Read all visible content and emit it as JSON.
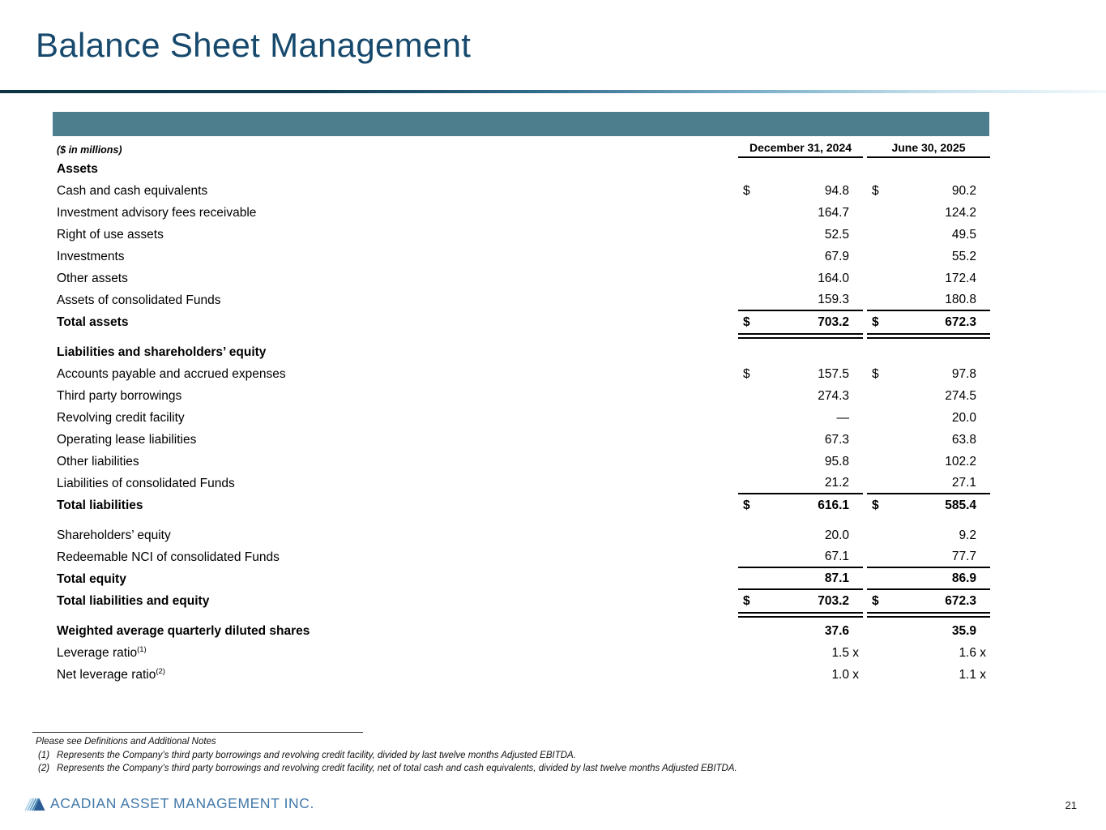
{
  "slide": {
    "title": "Balance Sheet Management",
    "page_number": "21"
  },
  "table": {
    "units_label": "($ in millions)",
    "columns": [
      "December 31, 2024",
      "June 30, 2025"
    ],
    "rows": [
      {
        "label": "Assets",
        "bold": true
      },
      {
        "label": "Cash and cash equivalents",
        "dollar": true,
        "v1": "94.8",
        "v2": "90.2"
      },
      {
        "label": "Investment advisory fees receivable",
        "v1": "164.7",
        "v2": "124.2"
      },
      {
        "label": "Right of use assets",
        "v1": "52.5",
        "v2": "49.5"
      },
      {
        "label": "Investments",
        "v1": "67.9",
        "v2": "55.2"
      },
      {
        "label": "Other assets",
        "v1": "164.0",
        "v2": "172.4"
      },
      {
        "label": "Assets of consolidated Funds",
        "v1": "159.3",
        "v2": "180.8",
        "rule": "single"
      },
      {
        "label": "Total assets",
        "bold": true,
        "dollar": true,
        "v1": "703.2",
        "v2": "672.3",
        "rule": "double"
      },
      {
        "label": "Liabilities and shareholders’ equity",
        "bold": true,
        "gap_before": true
      },
      {
        "label": "Accounts payable and accrued expenses",
        "dollar": true,
        "v1": "157.5",
        "v2": "97.8"
      },
      {
        "label": "Third party borrowings",
        "v1": "274.3",
        "v2": "274.5"
      },
      {
        "label": "Revolving credit facility",
        "v1": "—",
        "v2": "20.0"
      },
      {
        "label": "Operating lease liabilities",
        "v1": "67.3",
        "v2": "63.8"
      },
      {
        "label": "Other liabilities",
        "v1": "95.8",
        "v2": "102.2"
      },
      {
        "label": "Liabilities of consolidated Funds",
        "v1": "21.2",
        "v2": "27.1",
        "rule": "single"
      },
      {
        "label": "Total liabilities",
        "bold": true,
        "dollar": true,
        "v1": "616.1",
        "v2": "585.4"
      },
      {
        "label": "Shareholders’ equity",
        "v1": "20.0",
        "v2": "9.2",
        "gap_before": true
      },
      {
        "label": "Redeemable NCI of consolidated Funds",
        "v1": "67.1",
        "v2": "77.7",
        "rule": "single"
      },
      {
        "label": "Total equity",
        "bold": true,
        "v1": "87.1",
        "v2": "86.9",
        "rule": "single"
      },
      {
        "label": "Total liabilities and equity",
        "bold": true,
        "dollar": true,
        "v1": "703.2",
        "v2": "672.3",
        "rule": "double"
      },
      {
        "label": "Weighted average quarterly diluted shares",
        "bold": true,
        "v1": "37.6",
        "v2": "35.9",
        "gap_before": true
      },
      {
        "label": "Leverage ratio",
        "sup": "(1)",
        "v1": "1.5",
        "v2": "1.6",
        "suffix": " x"
      },
      {
        "label": "Net leverage ratio",
        "sup": "(2)",
        "v1": "1.0",
        "v2": "1.1",
        "suffix": " x"
      }
    ]
  },
  "footnotes": {
    "intro": "Please see Definitions and Additional Notes",
    "items": [
      {
        "marker": "(1)",
        "text": "Represents the Company’s third party borrowings and revolving credit facility, divided by last twelve months Adjusted EBITDA."
      },
      {
        "marker": "(2)",
        "text": "Represents the Company’s third party borrowings and revolving credit facility, net of total cash and cash equivalents, divided by last twelve months Adjusted EBITDA."
      }
    ]
  },
  "footer": {
    "company": "ACADIAN ASSET MANAGEMENT INC.",
    "logo": "acadian-triangle-logo"
  },
  "colors": {
    "title_navy": "#17496d",
    "banner_teal": "#4d7e8e",
    "logo_blue": "#4278a8",
    "rule_black": "#000000"
  }
}
